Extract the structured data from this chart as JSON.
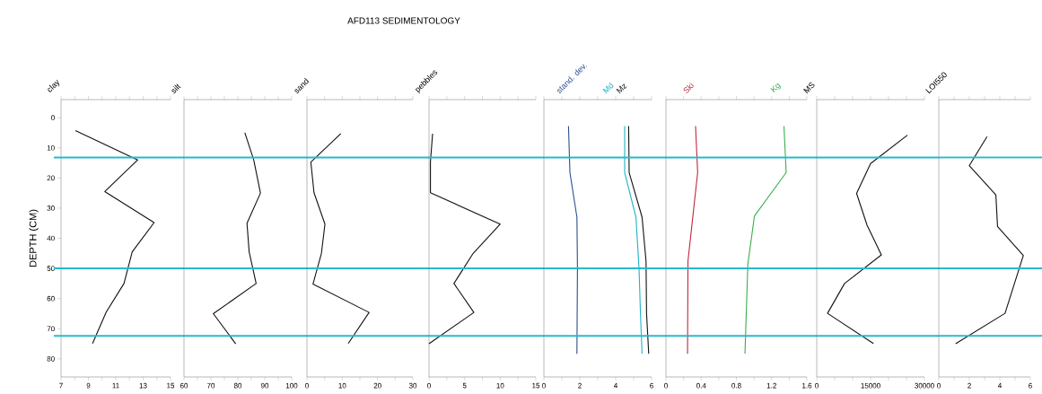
{
  "chart_data": [
    {
      "type": "line",
      "xlabel": "clay",
      "ylabel": "DEPTH (CM)",
      "xlim": [
        7,
        15
      ],
      "xticks": [
        7,
        {
          "value": 8,
          "label": null
        },
        9,
        {
          "value": 10,
          "label": null
        },
        11,
        {
          "value": 12,
          "label": null
        },
        13,
        {
          "value": 14,
          "label": null
        },
        15
      ],
      "ylim": [
        86,
        -6
      ],
      "yticks": [
        0,
        10,
        20,
        30,
        40,
        50,
        60,
        70,
        80
      ],
      "series": [
        {
          "color": "#111111",
          "x": [
            8.05,
            12.6,
            10.2,
            13.8,
            12.2,
            11.6,
            10.3,
            9.3
          ],
          "values": [
            4.3,
            14,
            24.5,
            34.8,
            44.5,
            55,
            64.5,
            74.9
          ]
        }
      ],
      "ref_lines": [
        {
          "axis": "y",
          "value": 13.2,
          "color": "#27b9cc"
        },
        {
          "axis": "y",
          "value": 50,
          "color": "#27b9cc"
        },
        {
          "axis": "y",
          "value": 72.4,
          "color": "#27b9cc"
        }
      ]
    },
    {
      "type": "line",
      "xlabel": "silt",
      "xlim": [
        60,
        100
      ],
      "xticks": [
        60,
        {
          "value": 65,
          "label": null
        },
        70,
        {
          "value": 75,
          "label": null
        },
        80,
        {
          "value": 85,
          "label": null
        },
        90,
        {
          "value": 95,
          "label": null
        },
        100
      ],
      "ylim": [
        86,
        -6
      ],
      "tick_labels": "x",
      "series": [
        {
          "color": "#111111",
          "x": [
            82.6,
            85.9,
            88.4,
            83.4,
            84.2,
            86.8,
            70.9,
            79.2
          ],
          "values": [
            5,
            14,
            25,
            35,
            44.5,
            55,
            65,
            75
          ]
        }
      ],
      "ref_lines": [
        {
          "axis": "y",
          "value": 13.2,
          "color": "#27b9cc"
        },
        {
          "axis": "y",
          "value": 50,
          "color": "#27b9cc"
        },
        {
          "axis": "y",
          "value": 72.4,
          "color": "#27b9cc"
        }
      ]
    },
    {
      "type": "line",
      "title": "AFD113 SEDIMENTOLOGY",
      "xlabel": "sand",
      "xlim": [
        0,
        30
      ],
      "xticks": [
        0,
        {
          "value": 5,
          "label": null
        },
        10,
        {
          "value": 15,
          "label": null
        },
        20,
        {
          "value": 25,
          "label": null
        },
        30
      ],
      "ylim": [
        86,
        -6
      ],
      "tick_labels": "x",
      "series": [
        {
          "color": "#111111",
          "x": [
            9.6,
            1.1,
            2,
            5.1,
            4.1,
            1.7,
            17.6,
            11.7
          ],
          "values": [
            5.3,
            14.7,
            24.9,
            35.3,
            45,
            55.2,
            64.6,
            74.9
          ]
        }
      ],
      "ref_lines": [
        {
          "axis": "y",
          "value": 13.2,
          "color": "#27b9cc"
        },
        {
          "axis": "y",
          "value": 50,
          "color": "#27b9cc"
        },
        {
          "axis": "y",
          "value": 72.4,
          "color": "#27b9cc"
        }
      ]
    },
    {
      "type": "line",
      "xlabel": "pebbles",
      "xlim": [
        0,
        15
      ],
      "xticks": [
        0,
        {
          "value": 2.5,
          "label": null
        },
        5,
        {
          "value": 7.5,
          "label": null
        },
        10,
        {
          "value": 12.5,
          "label": null
        },
        15
      ],
      "ylim": [
        86,
        -6
      ],
      "tick_labels": "x",
      "series": [
        {
          "color": "#111111",
          "x": [
            0.5,
            0.2,
            0.2,
            10,
            6.2,
            3.5,
            6.3,
            0
          ],
          "values": [
            5.3,
            14.7,
            24.9,
            35.3,
            45,
            55,
            64.6,
            75
          ]
        }
      ],
      "ref_lines": [
        {
          "axis": "y",
          "value": 13.2,
          "color": "#27b9cc"
        },
        {
          "axis": "y",
          "value": 50,
          "color": "#27b9cc"
        },
        {
          "axis": "y",
          "value": 72.4,
          "color": "#27b9cc"
        }
      ]
    },
    {
      "type": "line",
      "xlim": [
        0,
        6
      ],
      "xticks": [
        0,
        {
          "value": 1,
          "label": null
        },
        2,
        {
          "value": 3,
          "label": null
        },
        4,
        {
          "value": 5,
          "label": null
        },
        6
      ],
      "ylim": [
        86,
        -6
      ],
      "tick_labels": "x",
      "series": [
        {
          "name": "stand. dev.",
          "color": "#2a4f8c",
          "x": [
            1.37,
            1.45,
            1.84,
            1.87,
            1.84
          ],
          "values": [
            2.8,
            18.2,
            33,
            50,
            78.3
          ]
        },
        {
          "name": "Md",
          "color": "#1fb3c9",
          "x": [
            4.5,
            4.5,
            5.13,
            5.3,
            5.38,
            5.47
          ],
          "values": [
            2.8,
            18.2,
            33,
            50,
            65,
            78.3
          ]
        },
        {
          "name": "Mz",
          "color": "#111111",
          "x": [
            4.72,
            4.75,
            5.47,
            5.69,
            5.72,
            5.84
          ],
          "values": [
            2.8,
            18.2,
            33,
            47.5,
            65,
            78.3
          ]
        }
      ],
      "ref_lines": [
        {
          "axis": "y",
          "value": 13.2,
          "color": "#27b9cc"
        },
        {
          "axis": "y",
          "value": 50,
          "color": "#27b9cc"
        },
        {
          "axis": "y",
          "value": 72.4,
          "color": "#27b9cc"
        }
      ]
    },
    {
      "type": "line",
      "xlim": [
        0,
        1.6
      ],
      "xticks": [
        0,
        {
          "value": 0.2,
          "label": null
        },
        0.4,
        {
          "value": 0.6,
          "label": null
        },
        0.8,
        {
          "value": 1.0,
          "label": null
        },
        1.2,
        {
          "value": 1.4,
          "label": null
        },
        1.6
      ],
      "ylim": [
        86,
        -6
      ],
      "tick_labels": "x",
      "series": [
        {
          "name": "Ski",
          "color": "#c4263c",
          "x": [
            0.336,
            0.36,
            0.25,
            0.245
          ],
          "values": [
            2.8,
            18.2,
            47.5,
            78.3
          ]
        },
        {
          "name": "Kg",
          "color": "#3cae4e",
          "x": [
            1.34,
            1.365,
            1.005,
            0.93,
            0.897
          ],
          "values": [
            2.8,
            18.2,
            32.6,
            48.5,
            78.3
          ]
        }
      ],
      "ref_lines": [
        {
          "axis": "y",
          "value": 13.2,
          "color": "#27b9cc"
        },
        {
          "axis": "y",
          "value": 50,
          "color": "#27b9cc"
        },
        {
          "axis": "y",
          "value": 72.4,
          "color": "#27b9cc"
        }
      ]
    },
    {
      "type": "line",
      "xlabel": "MS",
      "xlim": [
        0,
        30000
      ],
      "xticks": [
        0,
        {
          "value": 5000,
          "label": null
        },
        {
          "value": 10000,
          "label": null
        },
        15000,
        {
          "value": 20000,
          "label": null
        },
        {
          "value": 25000,
          "label": null
        },
        30000
      ],
      "ylim": [
        86,
        -6
      ],
      "tick_labels": "x",
      "series": [
        {
          "color": "#111111",
          "x": [
            25250,
            15000,
            11100,
            14000,
            18000,
            7750,
            3000,
            15800
          ],
          "values": [
            5.8,
            15.2,
            25.1,
            35.6,
            45.5,
            55,
            64.9,
            74.9
          ]
        }
      ],
      "ref_lines": [
        {
          "axis": "y",
          "value": 13.2,
          "color": "#27b9cc"
        },
        {
          "axis": "y",
          "value": 50,
          "color": "#27b9cc"
        },
        {
          "axis": "y",
          "value": 72.4,
          "color": "#27b9cc"
        }
      ]
    },
    {
      "type": "line",
      "xlabel": "LOI550",
      "xlim": [
        0,
        6
      ],
      "xticks": [
        0,
        {
          "value": 1,
          "label": null
        },
        2,
        {
          "value": 3,
          "label": null
        },
        4,
        {
          "value": 5,
          "label": null
        },
        6
      ],
      "ylim": [
        86,
        -6
      ],
      "tick_labels": "x",
      "series": [
        {
          "color": "#111111",
          "x": [
            3.16,
            2.0,
            3.74,
            3.85,
            5.54,
            4.34,
            1.1
          ],
          "values": [
            6.3,
            15.9,
            25.6,
            36.1,
            45.7,
            64.9,
            75
          ]
        }
      ],
      "ref_lines": [
        {
          "axis": "y",
          "value": 13.2,
          "color": "#27b9cc"
        },
        {
          "axis": "y",
          "value": 50,
          "color": "#27b9cc"
        },
        {
          "axis": "y",
          "value": 72.4,
          "color": "#27b9cc"
        }
      ]
    }
  ]
}
